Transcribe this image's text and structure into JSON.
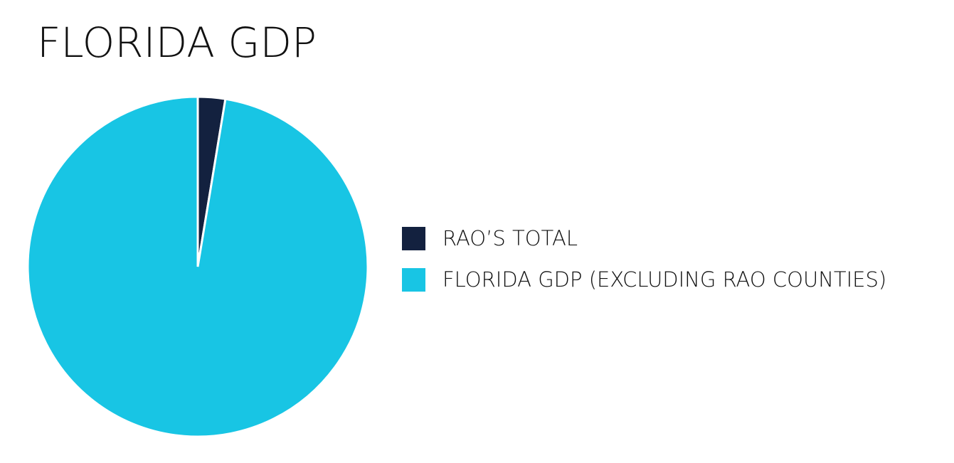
{
  "chart_data": {
    "type": "pie",
    "title": "FLORIDA GDP",
    "categories": [
      "RAO’S TOTAL",
      "FLORIDA GDP (EXCLUDING RAO COUNTIES)"
    ],
    "values": [
      2.6,
      97.4
    ],
    "colors": [
      "#13213f",
      "#18c5e4"
    ],
    "legend": "right"
  }
}
